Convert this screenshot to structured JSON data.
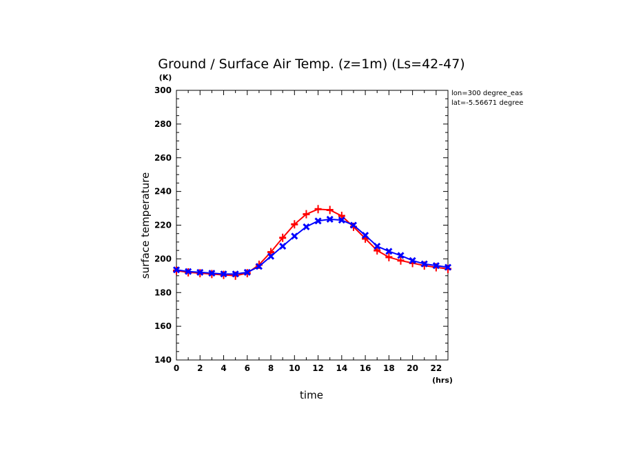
{
  "chart_data": {
    "type": "line",
    "title": "Ground / Surface Air Temp. (z=1m) (Ls=42-47)",
    "xlabel": "time",
    "ylabel": "surface temperature",
    "x_unit": "(hrs)",
    "y_unit": "(K)",
    "xlim": [
      0,
      23
    ],
    "ylim": [
      140,
      300
    ],
    "x_ticks": [
      "0",
      "2",
      "4",
      "6",
      "8",
      "10",
      "12",
      "14",
      "16",
      "18",
      "20",
      "22"
    ],
    "y_ticks": [
      "140",
      "160",
      "180",
      "200",
      "220",
      "240",
      "260",
      "280",
      "300"
    ],
    "annotations": [
      "lon=300 degree_eas",
      "lat=-5.56671 degree"
    ],
    "grid": false,
    "x": [
      0,
      1,
      2,
      3,
      4,
      5,
      6,
      7,
      8,
      9,
      10,
      11,
      12,
      13,
      14,
      15,
      16,
      17,
      18,
      19,
      20,
      21,
      22,
      23
    ],
    "series": [
      {
        "color": "#ff0000",
        "marker": "plus",
        "values": [
          193,
          192,
          191.5,
          191,
          190.5,
          190,
          191.5,
          196.5,
          204,
          212.5,
          220.5,
          226.5,
          229.5,
          229,
          225.5,
          219,
          212,
          205,
          201,
          199,
          197.5,
          196,
          195,
          194
        ]
      },
      {
        "color": "#0000ff",
        "marker": "x",
        "values": [
          193.5,
          192.5,
          192,
          191.5,
          191,
          191,
          192,
          195.5,
          201.5,
          207.5,
          213.5,
          219,
          222.5,
          223.5,
          223,
          220,
          214,
          207.5,
          204.5,
          202,
          199,
          197,
          196,
          195
        ]
      }
    ]
  }
}
